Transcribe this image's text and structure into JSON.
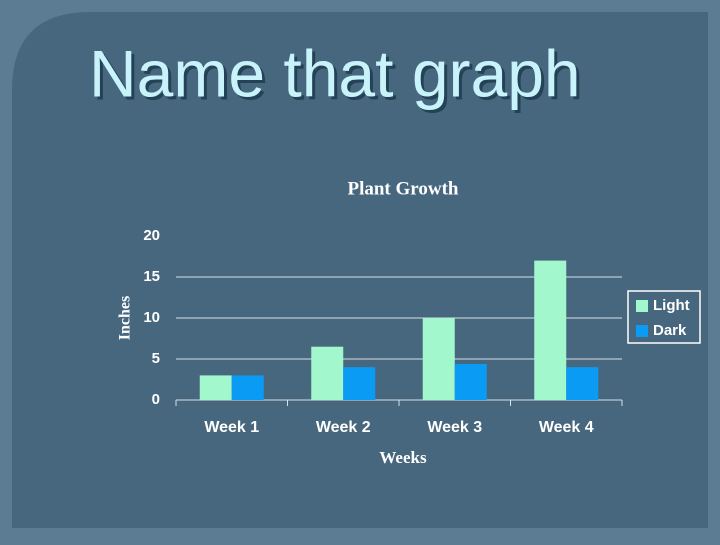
{
  "slide_title": "Name that graph",
  "chart_data": {
    "type": "bar",
    "title": "Plant Growth",
    "x_label": "Weeks",
    "y_label": "Inches",
    "categories": [
      "Week 1",
      "Week 2",
      "Week 3",
      "Week 4"
    ],
    "series": [
      {
        "name": "Light",
        "color": "#a3f7cc",
        "values": [
          3,
          6.5,
          10,
          17
        ]
      },
      {
        "name": "Dark",
        "color": "#0a9cf5",
        "values": [
          3,
          4,
          4.4,
          4
        ]
      }
    ],
    "ylim": [
      0,
      20
    ],
    "yticks": [
      0,
      5,
      10,
      15,
      20
    ],
    "grid": true,
    "legend": "right"
  }
}
